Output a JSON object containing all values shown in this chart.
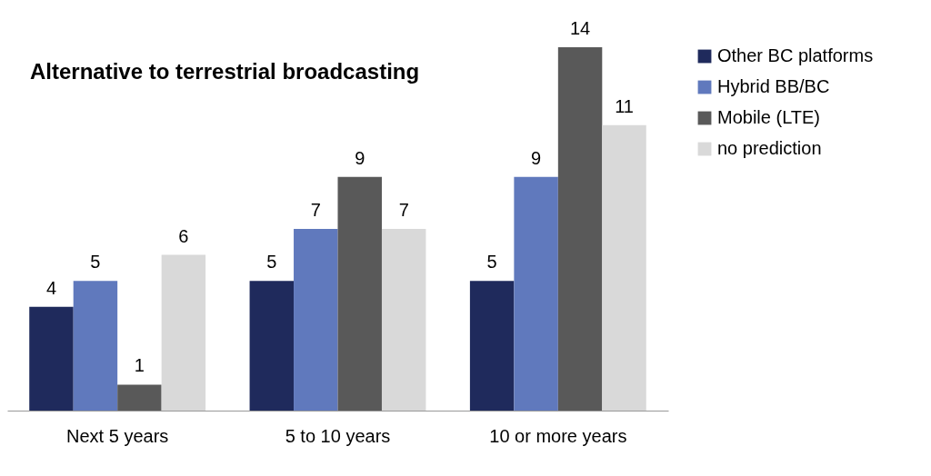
{
  "chart_data": {
    "type": "bar",
    "title": "Alternative to terrestrial broadcasting",
    "categories": [
      "Next 5 years",
      "5 to 10 years",
      "10 or more years"
    ],
    "series": [
      {
        "name": "Other BC platforms",
        "color": "#1f2a5c",
        "values": [
          4,
          5,
          5
        ]
      },
      {
        "name": "Hybrid BB/BC",
        "color": "#6079bd",
        "values": [
          5,
          7,
          9
        ]
      },
      {
        "name": "Mobile (LTE)",
        "color": "#595959",
        "values": [
          1,
          9,
          14
        ]
      },
      {
        "name": "no prediction",
        "color": "#d9d9d9",
        "values": [
          6,
          7,
          11
        ]
      }
    ],
    "data_labels": true,
    "legend": "right"
  }
}
